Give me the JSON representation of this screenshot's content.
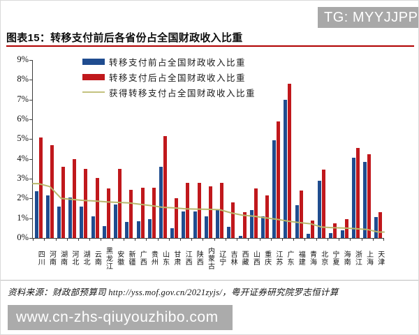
{
  "header": {
    "tg_label": "TG: MYYJJPP"
  },
  "title": "图表15：转移支付前后各省份占全国财政收入比重",
  "legend": [
    {
      "label": "转移支付前占全国财政收入比重",
      "color": "#1f4c8f",
      "type": "bar"
    },
    {
      "label": "转移支付后占全国财政收入比重",
      "color": "#c0181c",
      "type": "bar"
    },
    {
      "label": "获得转移支付占全国财政收入比重",
      "color": "#c3c27f",
      "type": "line"
    }
  ],
  "chart_data": {
    "type": "bar",
    "title": "图表15：转移支付前后各省份占全国财政收入比重",
    "categories": [
      "四川",
      "河南",
      "湖南",
      "河北",
      "湖北",
      "云南",
      "黑龙江",
      "安徽",
      "新疆",
      "广西",
      "贵州",
      "山东",
      "甘肃",
      "江西",
      "陕西",
      "内蒙古",
      "辽宁",
      "吉林",
      "西藏",
      "山西",
      "重庆",
      "江苏",
      "广东",
      "福建",
      "青海",
      "北京",
      "宁夏",
      "海南",
      "浙江",
      "上海",
      "天津"
    ],
    "series": [
      {
        "name": "转移支付前占全国财政收入比重",
        "type": "bar",
        "color": "#1f4c8f",
        "values": [
          2.35,
          2.15,
          1.6,
          2.05,
          1.6,
          1.1,
          0.6,
          1.7,
          0.8,
          0.85,
          0.95,
          3.6,
          0.5,
          1.35,
          1.35,
          1.1,
          1.4,
          0.55,
          0.1,
          1.4,
          1.1,
          4.95,
          7.0,
          1.65,
          0.2,
          2.9,
          0.25,
          0.4,
          4.05,
          3.85,
          1.05
        ]
      },
      {
        "name": "转移支付后占全国财政收入比重",
        "type": "bar",
        "color": "#c0181c",
        "values": [
          5.1,
          4.7,
          3.6,
          4.0,
          3.5,
          3.05,
          2.5,
          3.5,
          2.45,
          2.55,
          2.55,
          5.15,
          2.0,
          2.8,
          2.8,
          2.6,
          2.8,
          1.8,
          1.3,
          2.5,
          2.15,
          5.9,
          7.8,
          2.4,
          0.9,
          3.45,
          0.75,
          0.95,
          4.55,
          4.25,
          1.3
        ]
      },
      {
        "name": "获得转移支付占全国财政收入比重",
        "type": "line",
        "color": "#b9b86d",
        "values": [
          2.75,
          2.6,
          2.0,
          1.95,
          1.9,
          1.87,
          1.83,
          1.8,
          1.77,
          1.7,
          1.63,
          1.55,
          1.52,
          1.47,
          1.46,
          1.45,
          1.43,
          1.27,
          1.15,
          1.1,
          1.02,
          0.95,
          0.85,
          0.78,
          0.72,
          0.55,
          0.52,
          0.5,
          0.47,
          0.43,
          0.3
        ]
      }
    ],
    "xlabel": "",
    "ylabel": "",
    "ylim": [
      0,
      9
    ],
    "yticks": [
      "0%",
      "1%",
      "2%",
      "3%",
      "4%",
      "5%",
      "6%",
      "7%",
      "8%",
      "9%"
    ],
    "grid": false,
    "legend_position": "top-left-inside"
  },
  "footer": {
    "source": "资料来源：财政部预算司 http://yss.mof.gov.cn/2021zyjs/，粤开证券研究院罗志恒计算"
  },
  "watermark": "www.cn-zhs-qiuyouzhibo.com"
}
